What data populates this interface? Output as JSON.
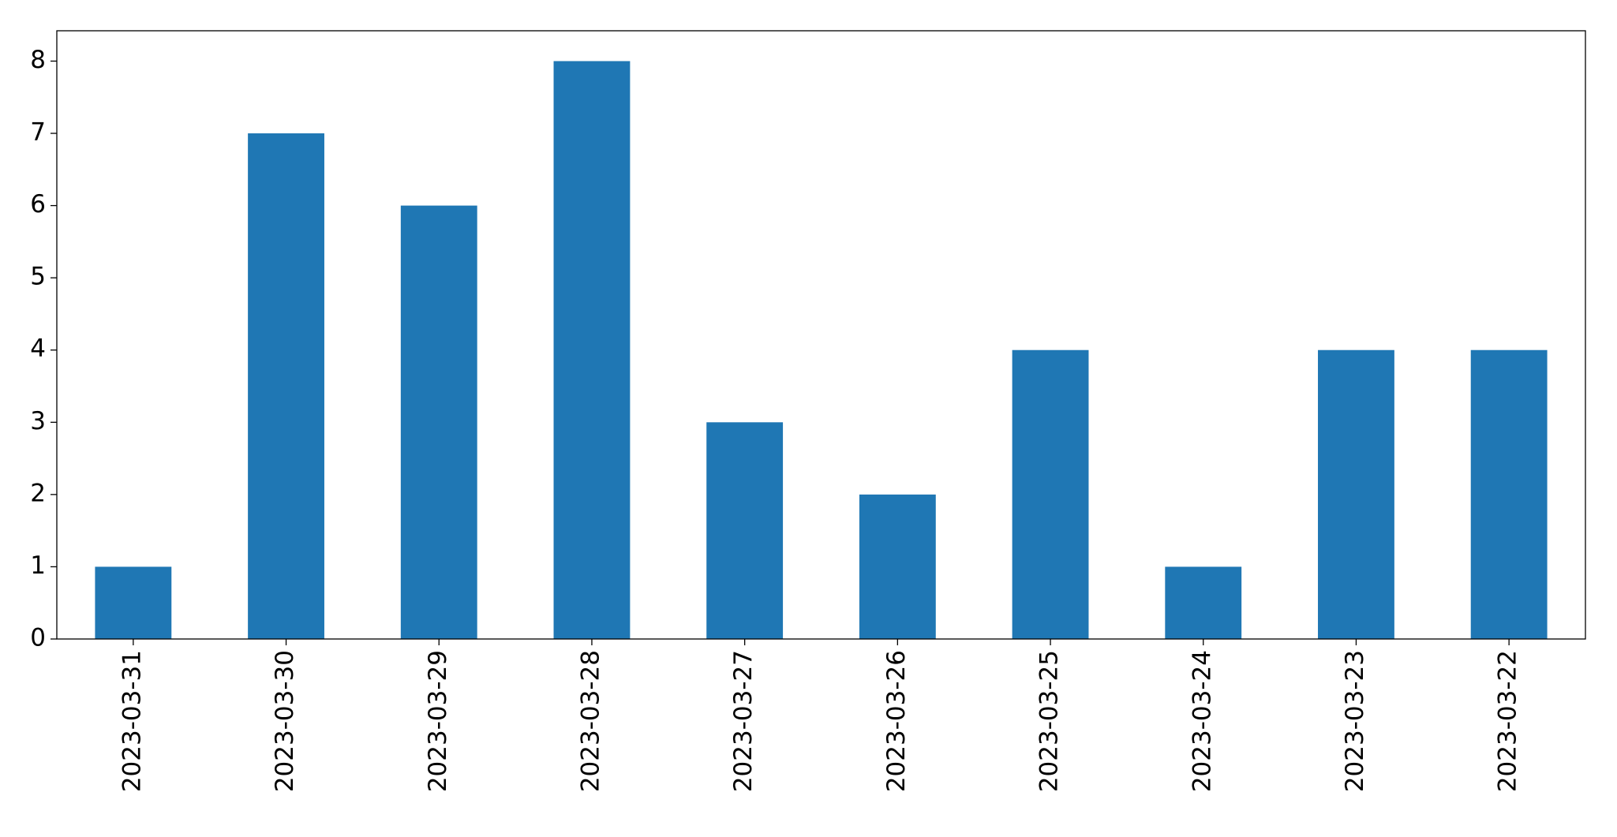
{
  "chart_data": {
    "type": "bar",
    "categories": [
      "2023-03-31",
      "2023-03-30",
      "2023-03-29",
      "2023-03-28",
      "2023-03-27",
      "2023-03-26",
      "2023-03-25",
      "2023-03-24",
      "2023-03-23",
      "2023-03-22"
    ],
    "values": [
      1,
      7,
      6,
      8,
      3,
      2,
      4,
      1,
      4,
      4
    ],
    "color": "#1f77b4",
    "ylim": [
      0,
      8.42
    ],
    "yticks": [
      0,
      1,
      2,
      3,
      4,
      5,
      6,
      7,
      8
    ],
    "grid": false
  }
}
